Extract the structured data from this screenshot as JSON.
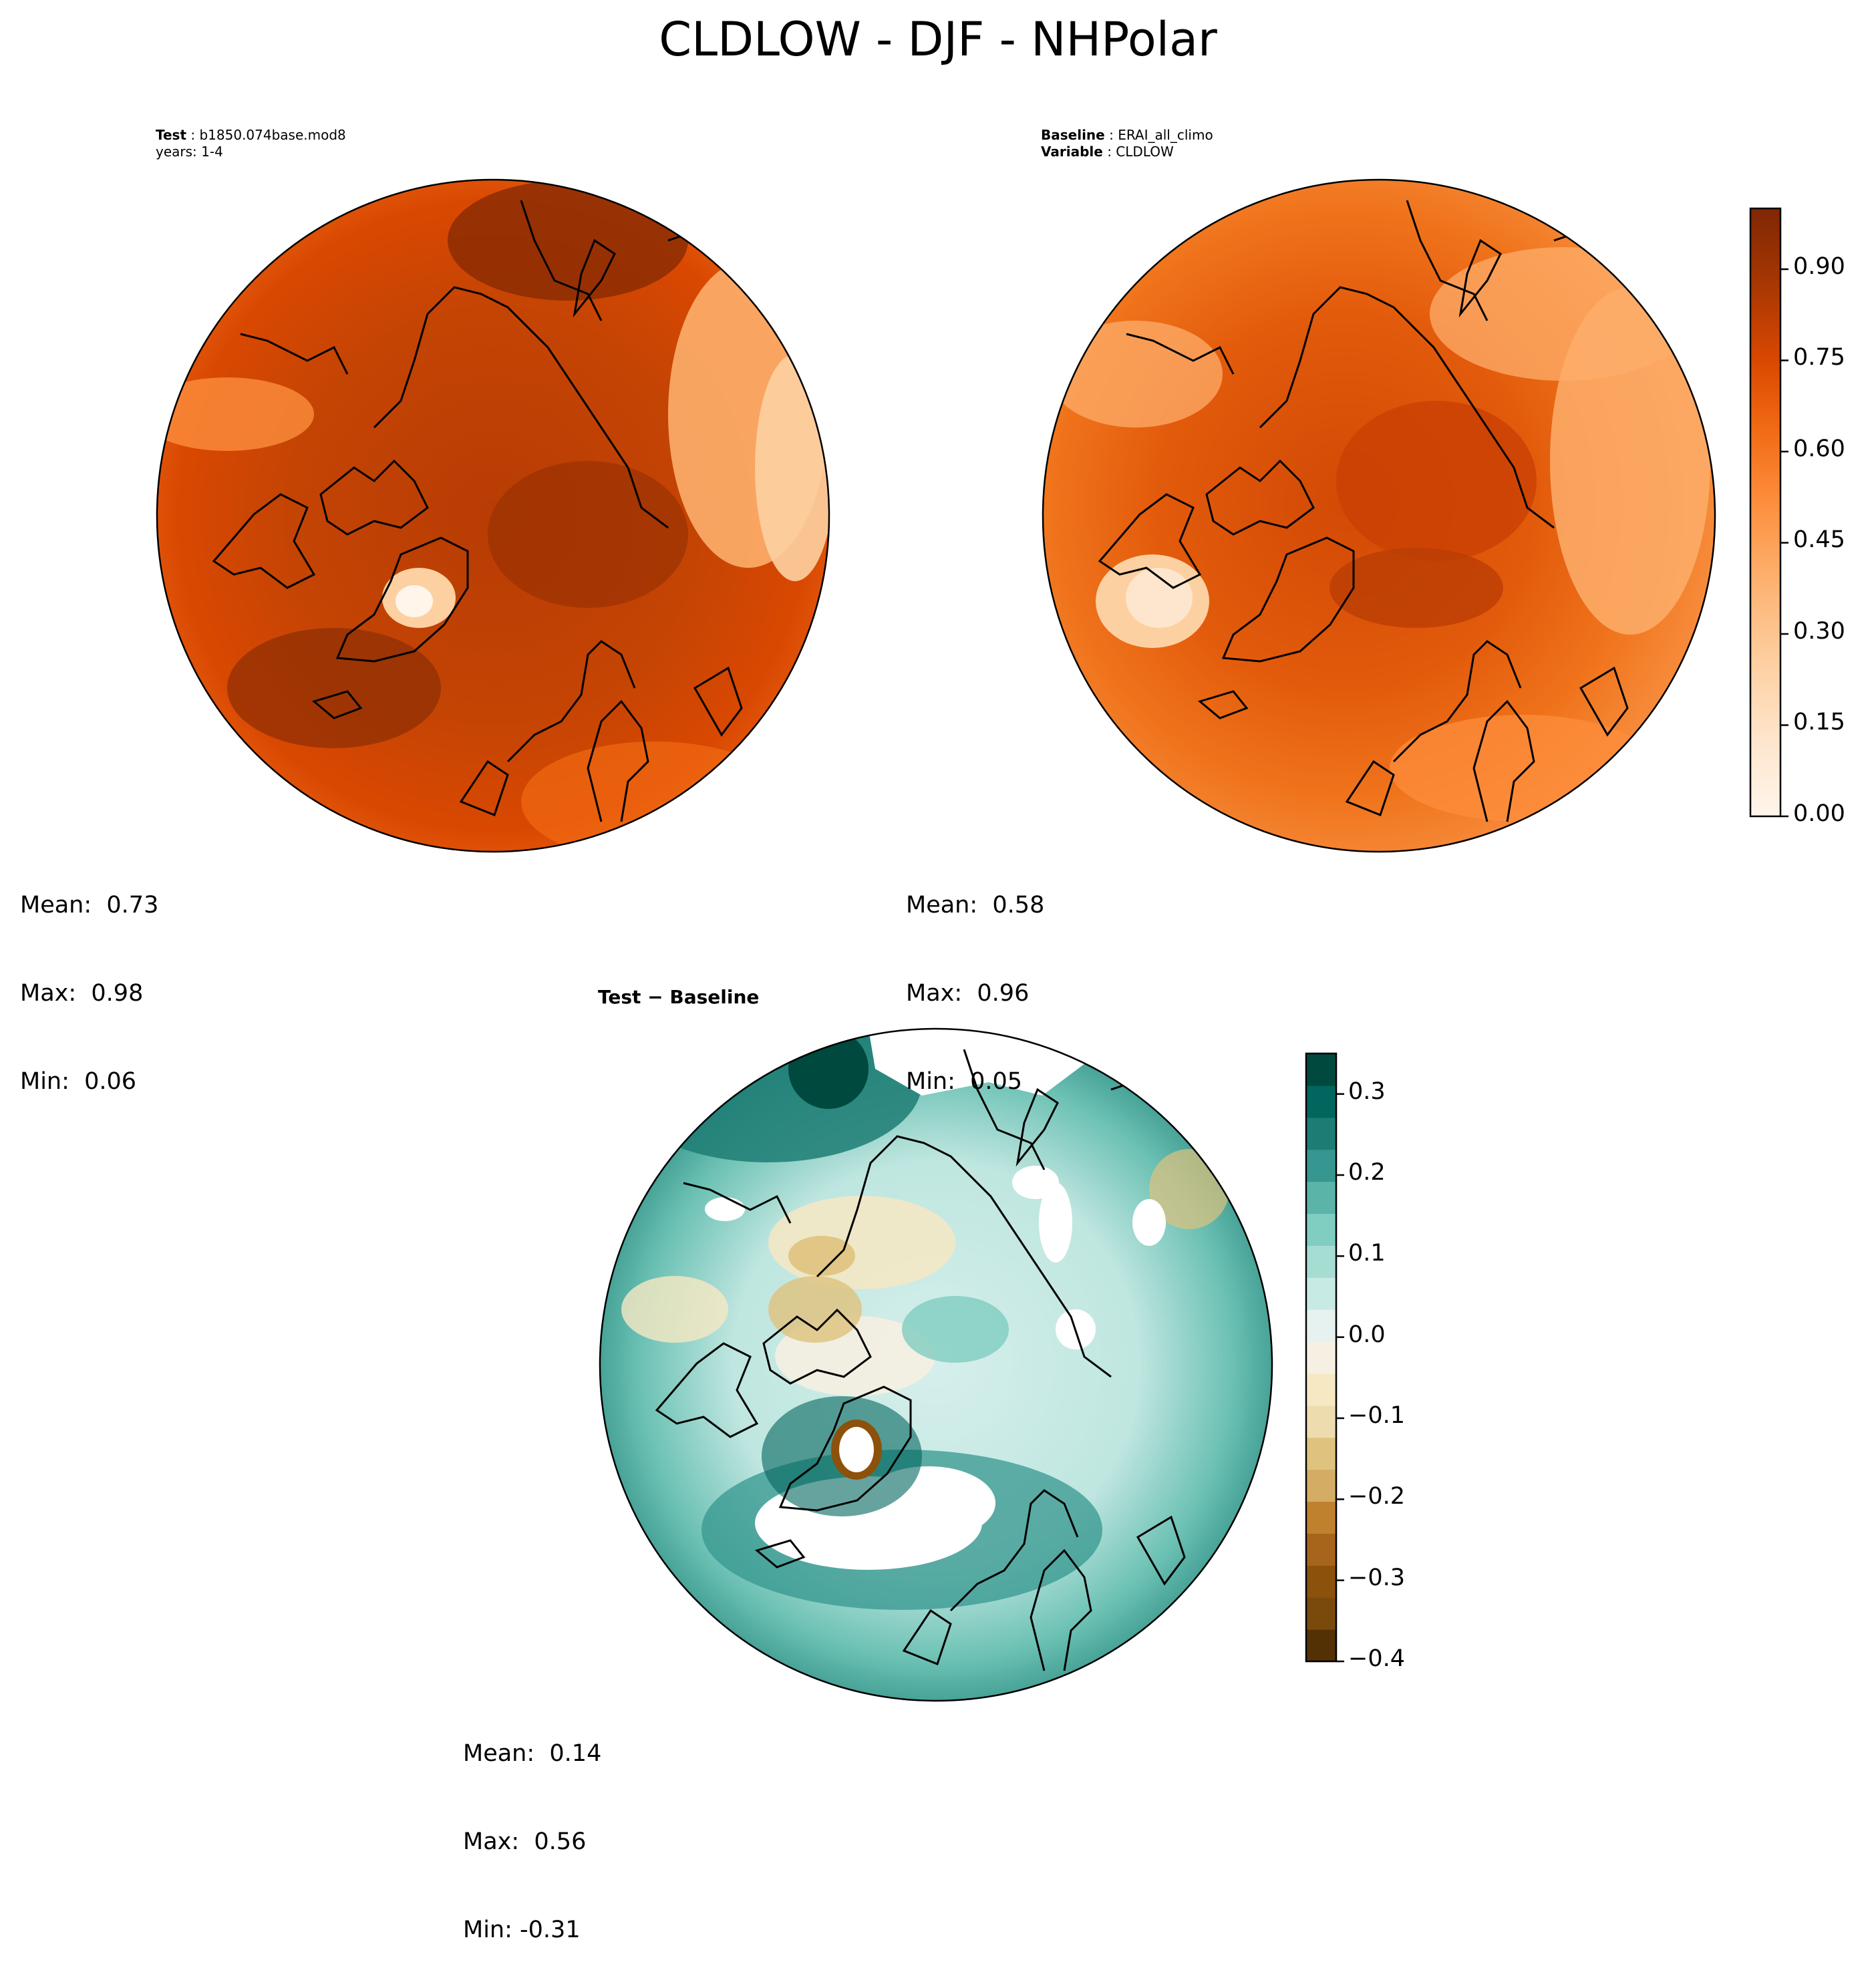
{
  "title": "CLDLOW - DJF - NHPolar",
  "panels": {
    "test": {
      "label_bold": "Test",
      "label_value": "b1850.074base.mod8",
      "years_line": "years: 1-4",
      "stats": {
        "mean": "Mean:  0.73",
        "max": "Max:  0.98",
        "min": "Min:  0.06"
      }
    },
    "baseline": {
      "label_bold": "Baseline",
      "label_value": "ERAI_all_climo",
      "variable_bold": "Variable",
      "variable_value": "CLDLOW",
      "stats": {
        "mean": "Mean:  0.58",
        "max": "Max:  0.96",
        "min": "Min:  0.05"
      }
    },
    "diff": {
      "title": "Test − Baseline",
      "stats": {
        "mean": "Mean:  0.14",
        "max": "Max:  0.56",
        "min": "Min: -0.31"
      }
    }
  },
  "colorbars": {
    "field": {
      "colormap": "Oranges",
      "range": [
        0.0,
        1.0
      ],
      "ticks": [
        "0.00",
        "0.15",
        "0.30",
        "0.45",
        "0.60",
        "0.75",
        "0.90"
      ],
      "colors": [
        "#fff5eb",
        "#fee6ce",
        "#fdd0a2",
        "#fdae6b",
        "#fd8d3c",
        "#f16913",
        "#e05a0c",
        "#d94801",
        "#b83c04",
        "#a63603",
        "#8c2d04",
        "#7f2704"
      ]
    },
    "diff": {
      "colormap": "BrBG",
      "range": [
        -0.4,
        0.35
      ],
      "ticks": [
        "−0.4",
        "−0.3",
        "−0.2",
        "−0.1",
        "0.0",
        "0.1",
        "0.2",
        "0.3"
      ],
      "colors": [
        "#543005",
        "#7a4a0c",
        "#8c510a",
        "#a6651a",
        "#bf812d",
        "#d4ac63",
        "#dfc27d",
        "#eddcae",
        "#f6e8c3",
        "#f5f0e1",
        "#e6f2ef",
        "#c7eae5",
        "#a6ddd3",
        "#80cdc1",
        "#5ab4a8",
        "#35978f",
        "#1d7d74",
        "#01665e",
        "#00493f"
      ]
    }
  }
}
